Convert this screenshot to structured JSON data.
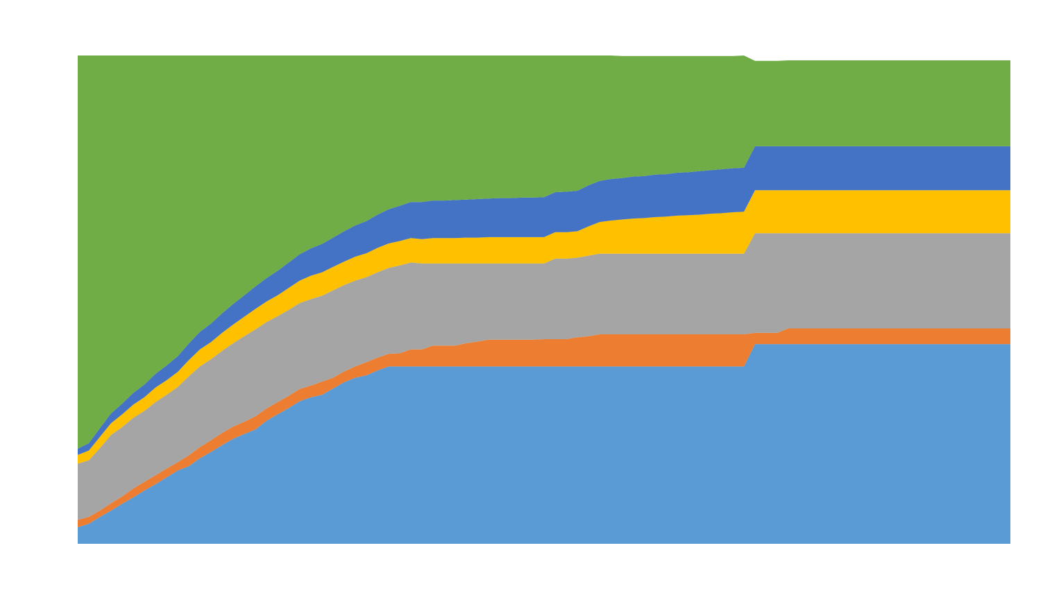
{
  "chart_data": {
    "type": "area",
    "stacked": true,
    "title": "",
    "xlabel": "",
    "ylabel": "",
    "grid": false,
    "legend": "none",
    "x": [
      0,
      1,
      2,
      3,
      4,
      5,
      6,
      7,
      8,
      9,
      10,
      11,
      12,
      13,
      14,
      15,
      16,
      17,
      18,
      19,
      20,
      21,
      22,
      23,
      24,
      25,
      26,
      27,
      28,
      29,
      30,
      31,
      32,
      33,
      34,
      35,
      36,
      37,
      38,
      39,
      40,
      41,
      42,
      43,
      44,
      45,
      46,
      47,
      48,
      49,
      50,
      51,
      52,
      53,
      54,
      55,
      56,
      57,
      58,
      59,
      60,
      61,
      62,
      63,
      64,
      65,
      66,
      67,
      68,
      69,
      70,
      71,
      72,
      73,
      74,
      75,
      76,
      77,
      78,
      79,
      80,
      81,
      82,
      83,
      84
    ],
    "xlim": [
      0,
      84
    ],
    "ylim": [
      0,
      100
    ],
    "series": [
      {
        "color": "#5b9bd5",
        "values": [
          3.4,
          4.1,
          5.5,
          6.8,
          8.2,
          9.5,
          10.9,
          12.2,
          13.6,
          15,
          15.9,
          17.5,
          18.8,
          20.2,
          21.5,
          22.5,
          23.4,
          25.2,
          26.5,
          27.8,
          29.2,
          30,
          30.5,
          31.8,
          33.1,
          34,
          34.5,
          35.5,
          36.3,
          36.3,
          36.3,
          36.3,
          36.3,
          36.3,
          36.3,
          36.3,
          36.3,
          36.3,
          36.3,
          36.3,
          36.3,
          36.3,
          36.3,
          36.3,
          36.3,
          36.3,
          36.3,
          36.3,
          36.3,
          36.3,
          36.3,
          36.3,
          36.3,
          36.3,
          36.3,
          36.3,
          36.3,
          36.3,
          36.3,
          36.3,
          36.3,
          40.9,
          40.9,
          40.9,
          40.9,
          40.9,
          40.9,
          40.9,
          40.9,
          40.9,
          40.9,
          40.9,
          40.9,
          40.9,
          40.9,
          40.9,
          40.9,
          40.9,
          40.9,
          40.9,
          40.9,
          40.9,
          40.9,
          40.9,
          40.9
        ]
      },
      {
        "color": "#ed7d31",
        "values": [
          1.5,
          1.4,
          1.3,
          1.5,
          1.5,
          1.8,
          1.8,
          1.8,
          1.8,
          1.7,
          2.2,
          2.3,
          2.4,
          2.5,
          2.5,
          2.5,
          2.7,
          2.5,
          2.5,
          2.5,
          2.5,
          2.4,
          2.7,
          2.2,
          2.2,
          2.3,
          2.7,
          2.6,
          2.6,
          2.7,
          3.5,
          3.5,
          4.3,
          4.3,
          4.3,
          4.8,
          5.1,
          5.5,
          5.5,
          5.5,
          5.5,
          5.5,
          5.6,
          5.6,
          5.6,
          6,
          6.2,
          6.6,
          6.6,
          6.6,
          6.6,
          6.6,
          6.6,
          6.6,
          6.6,
          6.6,
          6.6,
          6.6,
          6.6,
          6.6,
          6.6,
          2.3,
          2.3,
          2.3,
          3.2,
          3.2,
          3.2,
          3.2,
          3.2,
          3.2,
          3.2,
          3.2,
          3.2,
          3.2,
          3.2,
          3.2,
          3.2,
          3.2,
          3.2,
          3.2,
          3.2,
          3.2,
          3.2,
          3.2,
          3.2
        ]
      },
      {
        "color": "#a5a5a5",
        "values": [
          11.5,
          11.6,
          12.8,
          14,
          14.2,
          14.5,
          14.5,
          15,
          15.1,
          15.4,
          16.2,
          16.5,
          16.6,
          16.8,
          17.1,
          17.5,
          17.8,
          17.7,
          17.6,
          17.6,
          17.6,
          17.7,
          17.6,
          17.9,
          17.7,
          17.6,
          17.4,
          17.5,
          17.6,
          18,
          17.8,
          17.6,
          16.8,
          16.8,
          16.8,
          16.3,
          16,
          15.6,
          15.6,
          15.6,
          15.6,
          15.6,
          15.5,
          16.5,
          16.5,
          16.3,
          16.5,
          16.5,
          16.5,
          16.5,
          16.5,
          16.5,
          16.5,
          16.5,
          16.5,
          16.5,
          16.5,
          16.5,
          16.5,
          16.5,
          16.5,
          20.4,
          20.4,
          20.4,
          19.5,
          19.5,
          19.5,
          19.5,
          19.5,
          19.5,
          19.5,
          19.5,
          19.5,
          19.5,
          19.5,
          19.5,
          19.5,
          19.5,
          19.5,
          19.5,
          19.5,
          19.5,
          19.5,
          19.5,
          19.5
        ]
      },
      {
        "color": "#ffc000",
        "values": [
          1.8,
          2,
          2.3,
          2.4,
          2.6,
          2.7,
          2.8,
          3,
          3,
          3.1,
          3.3,
          3.5,
          3.5,
          3.7,
          3.8,
          4,
          4.2,
          4.2,
          4.3,
          4.5,
          4.6,
          4.8,
          4.8,
          4.8,
          4.8,
          4.9,
          4.9,
          5,
          5,
          5,
          5,
          5,
          5.2,
          5.2,
          5.2,
          5.3,
          5.3,
          5.4,
          5.4,
          5.4,
          5.4,
          5.4,
          5.4,
          5.4,
          5.4,
          5.4,
          6,
          6.5,
          6.8,
          7,
          7.2,
          7.3,
          7.5,
          7.6,
          7.8,
          7.9,
          8,
          8.2,
          8.3,
          8.5,
          8.6,
          8.8,
          8.8,
          8.8,
          8.8,
          8.8,
          8.8,
          8.8,
          8.8,
          8.8,
          8.8,
          8.8,
          8.8,
          8.8,
          8.8,
          8.8,
          8.8,
          8.8,
          8.8,
          8.8,
          8.8,
          8.8,
          8.8,
          8.8,
          8.8
        ]
      },
      {
        "color": "#4472c4",
        "values": [
          1.3,
          1.5,
          1.8,
          2,
          2.2,
          2.4,
          2.6,
          2.8,
          3,
          3.2,
          3.4,
          3.6,
          3.8,
          4,
          4.2,
          4.4,
          4.6,
          4.8,
          5,
          5.2,
          5.4,
          5.6,
          5.8,
          6,
          6.2,
          6.4,
          6.6,
          6.8,
          7,
          7.2,
          7.4,
          7.6,
          7.7,
          7.7,
          7.8,
          7.8,
          7.9,
          7.9,
          8,
          8,
          8.1,
          8.1,
          8.2,
          8.2,
          8.3,
          8.3,
          8.4,
          8.4,
          8.5,
          8.5,
          8.6,
          8.6,
          8.7,
          8.7,
          8.8,
          8.8,
          8.9,
          8.9,
          9,
          9,
          9,
          9,
          9,
          9,
          9,
          9,
          9,
          9,
          9,
          9,
          9,
          9,
          9,
          9,
          9,
          9,
          9,
          9,
          9,
          9,
          9,
          9,
          9,
          9,
          9
        ]
      },
      {
        "color": "#70ad47",
        "values": [
          80.5,
          79.4,
          76.3,
          73.3,
          71.3,
          69.1,
          67.4,
          65.2,
          63.5,
          61.6,
          59,
          56.6,
          54.9,
          52.8,
          50.9,
          49.1,
          47.3,
          45.6,
          44.1,
          42.4,
          40.7,
          39.5,
          38.6,
          37.3,
          36,
          34.8,
          33.9,
          32.6,
          31.5,
          30.8,
          30,
          30,
          29.7,
          29.7,
          29.6,
          29.5,
          29.4,
          29.3,
          29.2,
          29.2,
          29.1,
          29.1,
          29,
          28,
          27.9,
          27.7,
          26.6,
          25.7,
          25.3,
          25,
          24.7,
          24.6,
          24.3,
          24.2,
          23.9,
          23.8,
          23.6,
          23.4,
          23.2,
          23,
          23,
          17.5,
          17.5,
          17.5,
          17.6,
          17.6,
          17.6,
          17.6,
          17.6,
          17.6,
          17.6,
          17.6,
          17.6,
          17.6,
          17.6,
          17.6,
          17.6,
          17.6,
          17.6,
          17.6,
          17.6,
          17.6,
          17.6,
          17.6,
          17.6
        ]
      }
    ]
  }
}
